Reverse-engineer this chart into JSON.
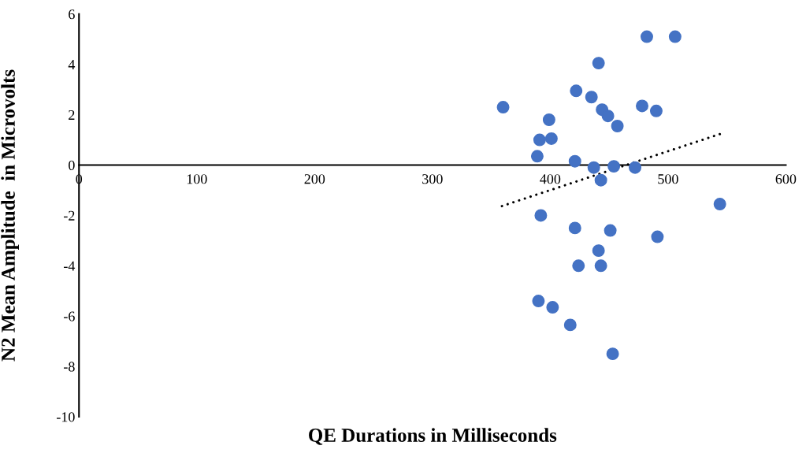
{
  "chart_data": {
    "type": "scatter",
    "xlabel": "QE Durations in Milliseconds",
    "ylabel": "N2 Mean Amplitude  in Microvolts",
    "xlim": [
      0,
      600
    ],
    "ylim": [
      -10,
      6
    ],
    "xticks": [
      0,
      100,
      200,
      300,
      400,
      500,
      600
    ],
    "yticks": [
      -10,
      -8,
      -6,
      -4,
      -2,
      0,
      2,
      4,
      6
    ],
    "grid": false,
    "series": [
      {
        "color": "#4472c4",
        "marker": "circle",
        "x": [
          360,
          399,
          391,
          401,
          389,
          421,
          422,
          435,
          441,
          444,
          449,
          457,
          478,
          490,
          482,
          506,
          437,
          454,
          472,
          443,
          544,
          392,
          421,
          451,
          491,
          441,
          424,
          443,
          390,
          402,
          417,
          453
        ],
        "values": [
          2.3,
          1.8,
          1.0,
          1.05,
          0.35,
          0.15,
          2.95,
          2.7,
          4.05,
          2.2,
          1.95,
          1.55,
          2.35,
          2.15,
          5.1,
          5.1,
          -0.1,
          -0.05,
          -0.1,
          -0.6,
          -1.55,
          -2.0,
          -2.5,
          -2.6,
          -2.85,
          -3.4,
          -4.0,
          -4.0,
          -5.4,
          -5.65,
          -6.35,
          -7.5
        ]
      },
      {
        "type": "line",
        "color": "#000000",
        "line_style": "dotted",
        "marker": "none",
        "x": [
          359,
          544
        ],
        "values": [
          -1.63,
          1.23
        ]
      }
    ]
  }
}
